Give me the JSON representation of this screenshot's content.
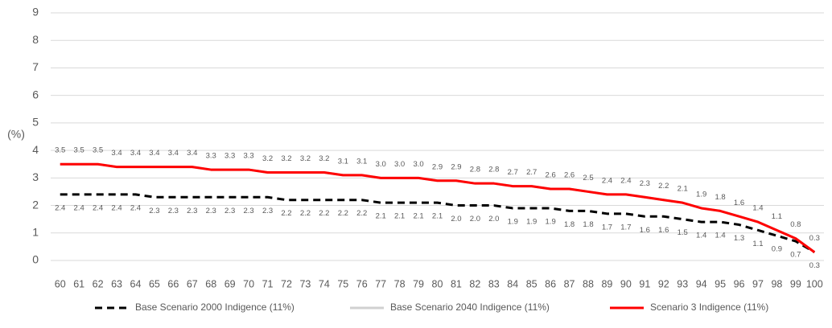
{
  "chart_data": {
    "type": "line",
    "y_label": "(%)",
    "categories": [
      "60",
      "61",
      "62",
      "63",
      "64",
      "65",
      "66",
      "67",
      "68",
      "69",
      "70",
      "71",
      "72",
      "73",
      "74",
      "75",
      "76",
      "77",
      "78",
      "79",
      "80",
      "81",
      "82",
      "83",
      "84",
      "85",
      "86",
      "87",
      "88",
      "89",
      "90",
      "91",
      "92",
      "93",
      "94",
      "95",
      "96",
      "97",
      "98",
      "99",
      "100"
    ],
    "series": [
      {
        "name": "Base Scenario 2000 Indigence (11%)",
        "color": "#000000",
        "dash": true,
        "label_position": "below",
        "values": [
          2.4,
          2.4,
          2.4,
          2.4,
          2.4,
          2.3,
          2.3,
          2.3,
          2.3,
          2.3,
          2.3,
          2.3,
          2.2,
          2.2,
          2.2,
          2.2,
          2.2,
          2.1,
          2.1,
          2.1,
          2.1,
          2.0,
          2.0,
          2.0,
          1.9,
          1.9,
          1.9,
          1.8,
          1.8,
          1.7,
          1.7,
          1.6,
          1.6,
          1.5,
          1.4,
          1.4,
          1.3,
          1.1,
          0.9,
          0.7,
          0.3
        ],
        "value_labels": [
          "2.4",
          "2.4",
          "2.4",
          "2.4",
          "2.4",
          "2.3",
          "2.3",
          "2.3",
          "2.3",
          "2.3",
          "2.3",
          "2.3",
          "2.2",
          "2.2",
          "2.2",
          "2.2",
          "2.2",
          "2.1",
          "2.1",
          "2.1",
          "2.1",
          "2.0",
          "2.0",
          "2.0",
          "1.9",
          "1.9",
          "1.9",
          "1.8",
          "1.8",
          "1.7",
          "1.7",
          "1.6",
          "1.6",
          "1.5",
          "1.4",
          "1.4",
          "1.3",
          "1.1",
          "0.9",
          "0.7",
          "0.3"
        ]
      },
      {
        "name": "Base Scenario 2040 Indigence (11%)",
        "color": "#d0d0d0",
        "dash": false,
        "values": [
          3.5,
          3.5,
          3.5,
          3.4,
          3.4,
          3.4,
          3.4,
          3.4,
          3.3,
          3.3,
          3.3,
          3.2,
          3.2,
          3.2,
          3.2,
          3.1,
          3.1,
          3.0,
          3.0,
          3.0,
          2.9,
          2.9,
          2.8,
          2.8,
          2.7,
          2.7,
          2.6,
          2.6,
          2.5,
          2.4,
          2.4,
          2.3,
          2.2,
          2.1,
          1.9,
          1.8,
          1.6,
          1.4,
          1.1,
          0.8,
          0.3
        ]
      },
      {
        "name": "Scenario 3 Indigence (11%)",
        "color": "#ff0000",
        "dash": false,
        "label_position": "above",
        "values": [
          3.5,
          3.5,
          3.5,
          3.4,
          3.4,
          3.4,
          3.4,
          3.4,
          3.3,
          3.3,
          3.3,
          3.2,
          3.2,
          3.2,
          3.2,
          3.1,
          3.1,
          3.0,
          3.0,
          3.0,
          2.9,
          2.9,
          2.8,
          2.8,
          2.7,
          2.7,
          2.6,
          2.6,
          2.5,
          2.4,
          2.4,
          2.3,
          2.2,
          2.1,
          1.9,
          1.8,
          1.6,
          1.4,
          1.1,
          0.8,
          0.3
        ],
        "value_labels": [
          "3.5",
          "3.5",
          "3.5",
          "3.4",
          "3.4",
          "3.4",
          "3.4",
          "3.4",
          "3.3",
          "3.3",
          "3.3",
          "3.2",
          "3.2",
          "3.2",
          "3.2",
          "3.1",
          "3.1",
          "3.0",
          "3.0",
          "3.0",
          "2.9",
          "2.9",
          "2.8",
          "2.8",
          "2.7",
          "2.7",
          "2.6",
          "2.6",
          "2.5",
          "2.4",
          "2.4",
          "2.3",
          "2.2",
          "2.1",
          "1.9",
          "1.8",
          "1.6",
          "1.4",
          "1.1",
          "0.8",
          "0.3"
        ]
      }
    ],
    "ylim": [
      0,
      9
    ],
    "yticks": [
      0,
      1,
      2,
      3,
      4,
      5,
      6,
      7,
      8,
      9
    ],
    "grid": true,
    "legend": "bottom"
  }
}
